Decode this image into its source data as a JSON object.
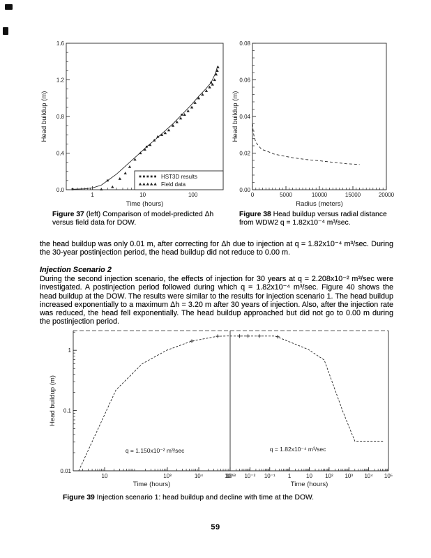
{
  "page_number": "59",
  "body": {
    "para1": "the head buildup was only 0.01 m, after correcting for Δh due to injection at q = 1.82x10⁻⁴ m³/sec. During the 30-year postinjection period, the head buildup did not reduce to 0.00 m.",
    "heading2": "Injection Scenario 2",
    "para2": "During the second injection scenario, the effects of injection for 30 years at q = 2.208x10⁻² m³/sec were investigated. A postinjection period followed during which q = 1.82x10⁻⁴ m³/sec. Figure 40 shows the head buildup at the DOW. The results were similar to the results for injection scenario 1. The head buildup increased exponentially to a maximum Δh =  3.20 m after 30 years of injection. Also, after the injection rate was reduced, the head fell exponentially. The head buildup approached but did not go to 0.00 m during the postinjection period."
  },
  "captions": {
    "fig37": {
      "label": "Figure 37",
      "text": "  (left) Comparison of model-predicted Δh versus field data for DOW."
    },
    "fig38": {
      "label": "Figure 38",
      "text": " Head buildup versus radial distance from WDW2 q = 1.82x10⁻⁴ m³/sec."
    },
    "fig39": {
      "label": "Figure 39",
      "text": "  Injection scenario 1: head buildup and decline with time at the DOW."
    }
  },
  "chart_data": [
    {
      "id": "fig37",
      "type": "line",
      "title": "",
      "xlabel": "Time (hours)",
      "ylabel": "Head buildup (m)",
      "xscale": "log",
      "xlim": [
        0.3,
        400
      ],
      "yscale": "linear",
      "ylim": [
        0,
        1.6
      ],
      "xticks": [
        [
          1,
          "1"
        ],
        [
          10,
          "10"
        ],
        [
          100,
          "100"
        ]
      ],
      "yticks": [
        [
          0,
          "0.0"
        ],
        [
          0.4,
          "0.4"
        ],
        [
          0.8,
          "0.8"
        ],
        [
          1.2,
          "1.2"
        ],
        [
          1.6,
          "1.6"
        ]
      ],
      "yminor_step": 0.1,
      "grid": false,
      "legend_position": "bottom-right",
      "series": [
        {
          "name": "HST3D results",
          "draw": "line",
          "marker": "square",
          "marker_every": 4,
          "points": [
            [
              0.4,
              0.005
            ],
            [
              0.7,
              0.01
            ],
            [
              1,
              0.02
            ],
            [
              1.5,
              0.05
            ],
            [
              2,
              0.1
            ],
            [
              3,
              0.17
            ],
            [
              5,
              0.28
            ],
            [
              8,
              0.38
            ],
            [
              12,
              0.47
            ],
            [
              18,
              0.55
            ],
            [
              25,
              0.62
            ],
            [
              40,
              0.72
            ],
            [
              60,
              0.82
            ],
            [
              90,
              0.92
            ],
            [
              130,
              1.02
            ],
            [
              180,
              1.1
            ],
            [
              230,
              1.17
            ],
            [
              280,
              1.27
            ],
            [
              310,
              1.35
            ]
          ]
        },
        {
          "name": "Field data",
          "draw": "markers",
          "marker": "triangle",
          "points": [
            [
              1.5,
              0.005
            ],
            [
              2.5,
              0.03
            ],
            [
              3.5,
              0.12
            ],
            [
              4.5,
              0.18
            ],
            [
              5.5,
              0.25
            ],
            [
              7,
              0.33
            ],
            [
              9,
              0.4
            ],
            [
              11,
              0.44
            ],
            [
              14,
              0.49
            ],
            [
              17,
              0.54
            ],
            [
              20,
              0.58
            ],
            [
              24,
              0.6
            ],
            [
              28,
              0.62
            ],
            [
              33,
              0.65
            ],
            [
              40,
              0.7
            ],
            [
              48,
              0.74
            ],
            [
              57,
              0.78
            ],
            [
              68,
              0.82
            ],
            [
              80,
              0.86
            ],
            [
              95,
              0.9
            ],
            [
              110,
              0.95
            ],
            [
              130,
              1.0
            ],
            [
              155,
              1.04
            ],
            [
              185,
              1.08
            ],
            [
              215,
              1.12
            ],
            [
              245,
              1.15
            ],
            [
              270,
              1.2
            ],
            [
              290,
              1.26
            ],
            [
              305,
              1.3
            ],
            [
              315,
              1.34
            ]
          ]
        }
      ]
    },
    {
      "id": "fig38",
      "type": "line",
      "title": "",
      "xlabel": "Radius (meters)",
      "ylabel": "Head buildup (m)",
      "xscale": "linear",
      "xlim": [
        0,
        20000
      ],
      "yscale": "linear",
      "ylim": [
        0,
        0.08
      ],
      "xticks": [
        [
          0,
          "0"
        ],
        [
          5000,
          "5000"
        ],
        [
          10000,
          "10000"
        ],
        [
          15000,
          "15000"
        ],
        [
          20000,
          "20000"
        ]
      ],
      "xminor_step": 500,
      "yticks": [
        [
          0,
          "0.00"
        ],
        [
          0.02,
          "0.02"
        ],
        [
          0.04,
          "0.04"
        ],
        [
          0.06,
          "0.06"
        ],
        [
          0.08,
          "0.08"
        ]
      ],
      "yminor_step": 0.004,
      "grid": false,
      "series": [
        {
          "name": "head buildup",
          "draw": "line",
          "dash": "4 3",
          "points": [
            [
              30,
              0.036
            ],
            [
              100,
              0.032
            ],
            [
              250,
              0.029
            ],
            [
              500,
              0.026
            ],
            [
              900,
              0.024
            ],
            [
              1400,
              0.022
            ],
            [
              2200,
              0.021
            ],
            [
              3200,
              0.0195
            ],
            [
              4500,
              0.0185
            ],
            [
              6000,
              0.0175
            ],
            [
              8000,
              0.0165
            ],
            [
              10000,
              0.0158
            ],
            [
              12000,
              0.015
            ],
            [
              14000,
              0.0142
            ],
            [
              16000,
              0.0138
            ]
          ]
        }
      ]
    },
    {
      "id": "fig39",
      "type": "line",
      "title": "",
      "ylabel": "Head buildup (m)",
      "yscale": "log",
      "ylim": [
        0.01,
        2.12
      ],
      "yticks": [
        [
          0.01,
          "0.01"
        ],
        [
          0.1,
          "0.1"
        ],
        [
          1,
          "1"
        ]
      ],
      "grid": false,
      "panels": [
        {
          "xlabel": "Time (hours)",
          "xscale": "log",
          "xlim": [
            1,
            100000
          ],
          "xticks": [
            [
              10,
              "10"
            ],
            [
              1000,
              "10³"
            ],
            [
              10000,
              "10⁴"
            ],
            [
              100000,
              "10⁵"
            ]
          ],
          "annotation": {
            "text": "q =  1.150x10⁻²  m³/sec",
            "at": [
              46,
              0.02
            ]
          },
          "series": [
            {
              "name": "scenario 1 buildup",
              "draw": "line",
              "dash": "3 2",
              "points": [
                [
                  1.5,
                  0.01
                ],
                [
                  23,
                  0.22
                ],
                [
                  160,
                  0.6
                ],
                [
                  950,
                  1.0
                ],
                [
                  6000,
                  1.42
                ],
                [
                  40000,
                  1.71
                ],
                [
                  100000,
                  1.73
                ]
              ]
            },
            {
              "name": "buildup markers",
              "draw": "markers",
              "marker": "plus",
              "points": [
                [
                  6000,
                  1.42
                ],
                [
                  40000,
                  1.71
                ]
              ]
            }
          ]
        },
        {
          "xlabel": "Time (hours)",
          "xscale": "log",
          "xlim": [
            0.001,
            100000
          ],
          "xticks": [
            [
              0.001,
              "10⁻³"
            ],
            [
              0.01,
              "10⁻²"
            ],
            [
              0.1,
              "10⁻¹"
            ],
            [
              1,
              "1"
            ],
            [
              10,
              "10"
            ],
            [
              100,
              "10²"
            ],
            [
              1000,
              "10³"
            ],
            [
              10000,
              "10⁴"
            ],
            [
              100000,
              "10⁵"
            ]
          ],
          "annotation": {
            "text": "q =  1.82x10⁻⁴  m³/sec",
            "at": [
              0.1,
              0.021
            ]
          },
          "series": [
            {
              "name": "scenario 1 decline",
              "draw": "line",
              "dash": "3 2",
              "points": [
                [
                  0.001,
                  1.72
                ],
                [
                  0.19,
                  1.72
                ],
                [
                  9,
                  1.03
                ],
                [
                  57,
                  0.69
                ],
                [
                  490,
                  0.097
                ],
                [
                  2000,
                  0.031
                ],
                [
                  60000,
                  0.031
                ]
              ]
            },
            {
              "name": "decline markers",
              "draw": "markers",
              "marker": "plus",
              "points": [
                [
                  0.003,
                  1.72
                ],
                [
                  0.008,
                  1.72
                ],
                [
                  0.03,
                  1.72
                ],
                [
                  0.25,
                  1.68
                ]
              ]
            }
          ]
        }
      ]
    }
  ]
}
